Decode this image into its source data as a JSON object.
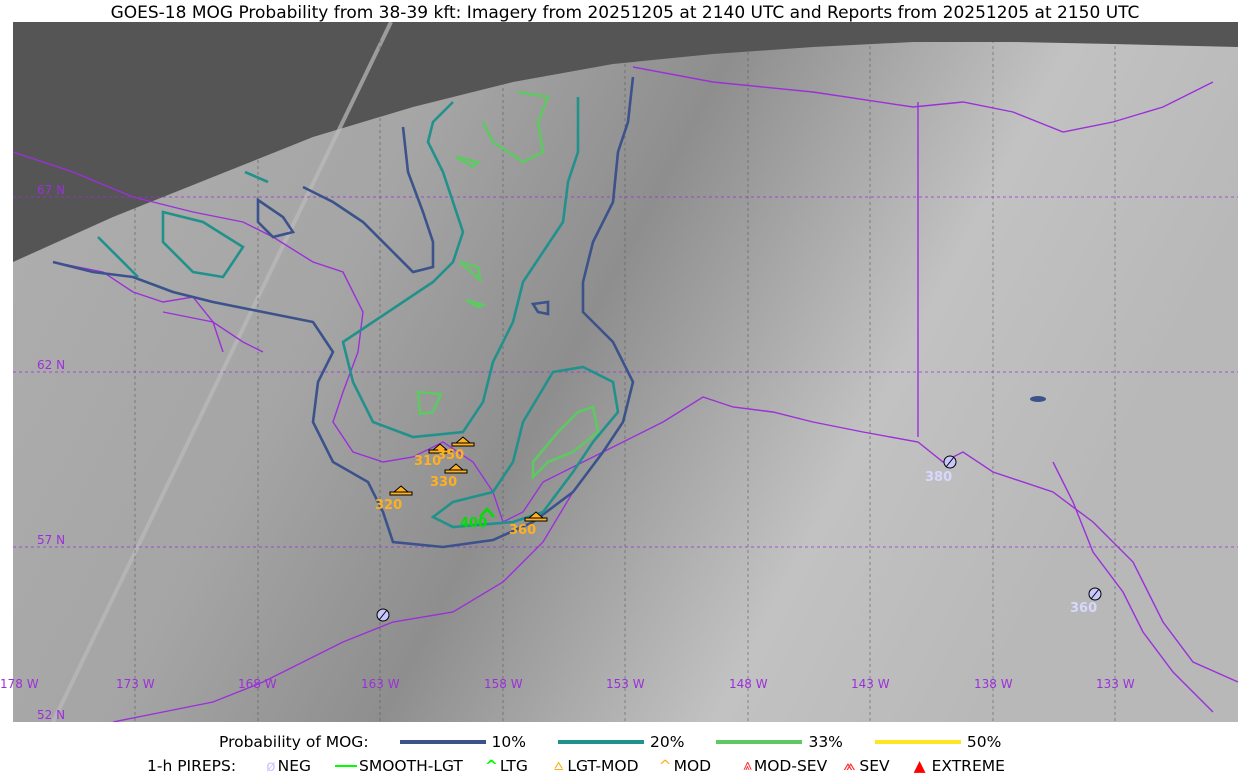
{
  "title": "GOES-18 MOG Probability from 38-39 kft: Imagery from 20251205 at 2140 UTC and Reports from 20251205 at 2150 UTC",
  "map": {
    "lon_labels": [
      "178 W",
      "173 W",
      "168 W",
      "163 W",
      "158 W",
      "153 W",
      "148 W",
      "143 W",
      "138 W",
      "133 W"
    ],
    "lat_labels": [
      "67 N",
      "62 N",
      "57 N",
      "52 N"
    ],
    "colors": {
      "coast": "#9b30d9",
      "grid": "#9b30d9",
      "nodata": "#555555"
    }
  },
  "pireps": [
    {
      "type": "LGT-MOD",
      "alt": "310"
    },
    {
      "type": "LGT-MOD",
      "alt": "350"
    },
    {
      "type": "LGT-MOD",
      "alt": "330"
    },
    {
      "type": "LGT-MOD",
      "alt": "320"
    },
    {
      "type": "LTG",
      "alt": "400"
    },
    {
      "type": "LGT-MOD",
      "alt": "360"
    },
    {
      "type": "NEG",
      "alt": "380"
    },
    {
      "type": "NEG",
      "alt": "360"
    },
    {
      "type": "NEG",
      "alt": ""
    }
  ],
  "legend": {
    "prob_title": "Probability of MOG:",
    "prob": [
      {
        "label": "10%",
        "color": "#3b528b"
      },
      {
        "label": "20%",
        "color": "#21918c"
      },
      {
        "label": "33%",
        "color": "#5ec962"
      },
      {
        "label": "50%",
        "color": "#fde725"
      }
    ],
    "pirep_title": "1-h PIREPS:",
    "pirep_items": [
      {
        "label": "NEG",
        "icon": "neg-icon",
        "color": "#c8c8ff"
      },
      {
        "label": "SMOOTH-LGT",
        "icon": "line-icon",
        "color": "#00ff00"
      },
      {
        "label": "LTG",
        "icon": "caret-icon",
        "color": "#00ff00"
      },
      {
        "label": "LGT-MOD",
        "icon": "lgt-mod-icon",
        "color": "#ffb020"
      },
      {
        "label": "MOD",
        "icon": "caret-icon",
        "color": "#ffb020"
      },
      {
        "label": "MOD-SEV",
        "icon": "mod-sev-icon",
        "color": "#ff3030"
      },
      {
        "label": "SEV",
        "icon": "sev-icon",
        "color": "#ff3030"
      },
      {
        "label": "EXTREME",
        "icon": "extreme-icon",
        "color": "#ff0000"
      }
    ]
  }
}
